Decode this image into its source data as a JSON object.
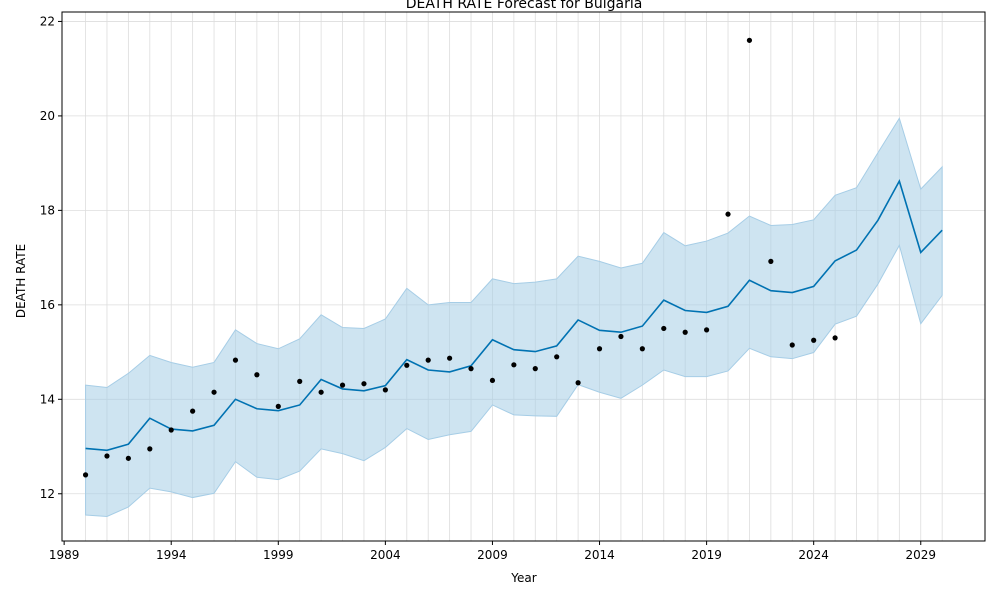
{
  "chart_data": {
    "type": "line",
    "title": "DEATH RATE Forecast for Bulgaria",
    "xlabel": "Year",
    "ylabel": "DEATH RATE",
    "xlim": [
      1988.9,
      2032.0
    ],
    "ylim": [
      11.0,
      22.2
    ],
    "x_ticks": [
      1989,
      1994,
      1999,
      2004,
      2009,
      2014,
      2019,
      2024,
      2029
    ],
    "y_ticks": [
      12,
      14,
      16,
      18,
      20,
      22
    ],
    "grid": true,
    "colors": {
      "forecast_line": "#0072b2",
      "interval_fill": "#a6cde6",
      "observed_points": "#000000",
      "grid": "#dddddd"
    },
    "forecast": {
      "x": [
        1990,
        1991,
        1992,
        1993,
        1994,
        1995,
        1996,
        1997,
        1998,
        1999,
        2000,
        2001,
        2002,
        2003,
        2004,
        2005,
        2006,
        2007,
        2008,
        2009,
        2010,
        2011,
        2012,
        2013,
        2014,
        2015,
        2016,
        2017,
        2018,
        2019,
        2020,
        2021,
        2022,
        2023,
        2024,
        2025,
        2026,
        2027,
        2028,
        2029,
        2030
      ],
      "yhat": [
        12.96,
        12.92,
        13.05,
        13.6,
        13.37,
        13.33,
        13.45,
        14.0,
        13.8,
        13.76,
        13.88,
        14.42,
        14.22,
        14.18,
        14.29,
        14.84,
        14.62,
        14.58,
        14.71,
        15.26,
        15.05,
        15.01,
        15.13,
        15.68,
        15.46,
        15.42,
        15.55,
        16.1,
        15.88,
        15.84,
        15.97,
        16.52,
        16.3,
        16.26,
        16.39,
        16.93,
        17.16,
        17.79,
        18.62,
        17.11,
        17.58
      ],
      "yhat_lower": [
        11.55,
        11.52,
        11.72,
        12.12,
        12.04,
        11.92,
        12.01,
        12.68,
        12.35,
        12.3,
        12.48,
        12.95,
        12.85,
        12.7,
        12.98,
        13.38,
        13.15,
        13.25,
        13.32,
        13.88,
        13.67,
        13.65,
        13.64,
        14.31,
        14.15,
        14.02,
        14.3,
        14.62,
        14.48,
        14.48,
        14.6,
        15.08,
        14.9,
        14.86,
        14.99,
        15.59,
        15.76,
        16.44,
        17.26,
        15.6,
        16.2
      ],
      "yhat_upper": [
        14.3,
        14.25,
        14.55,
        14.93,
        14.78,
        14.68,
        14.78,
        15.47,
        15.18,
        15.07,
        15.28,
        15.79,
        15.52,
        15.5,
        15.7,
        16.35,
        16.0,
        16.05,
        16.05,
        16.55,
        16.45,
        16.48,
        16.55,
        17.03,
        16.92,
        16.78,
        16.88,
        17.53,
        17.25,
        17.35,
        17.52,
        17.88,
        17.68,
        17.7,
        17.8,
        18.32,
        18.48,
        19.22,
        19.95,
        18.45,
        18.92
      ]
    },
    "observed": {
      "x": [
        1990,
        1991,
        1992,
        1993,
        1994,
        1995,
        1996,
        1997,
        1998,
        1999,
        2000,
        2001,
        2002,
        2003,
        2004,
        2005,
        2006,
        2007,
        2008,
        2009,
        2010,
        2011,
        2012,
        2013,
        2014,
        2015,
        2016,
        2017,
        2018,
        2019,
        2020,
        2021,
        2022,
        2023,
        2024,
        2025
      ],
      "y": [
        12.4,
        12.8,
        12.75,
        12.95,
        13.35,
        13.75,
        14.15,
        14.83,
        14.52,
        13.85,
        14.38,
        14.15,
        14.3,
        14.33,
        14.2,
        14.72,
        14.83,
        14.87,
        14.65,
        14.4,
        14.73,
        14.65,
        14.9,
        14.35,
        15.07,
        15.33,
        15.07,
        15.5,
        15.42,
        15.47,
        17.92,
        21.6,
        16.92,
        15.15,
        15.25,
        15.3
      ]
    }
  }
}
